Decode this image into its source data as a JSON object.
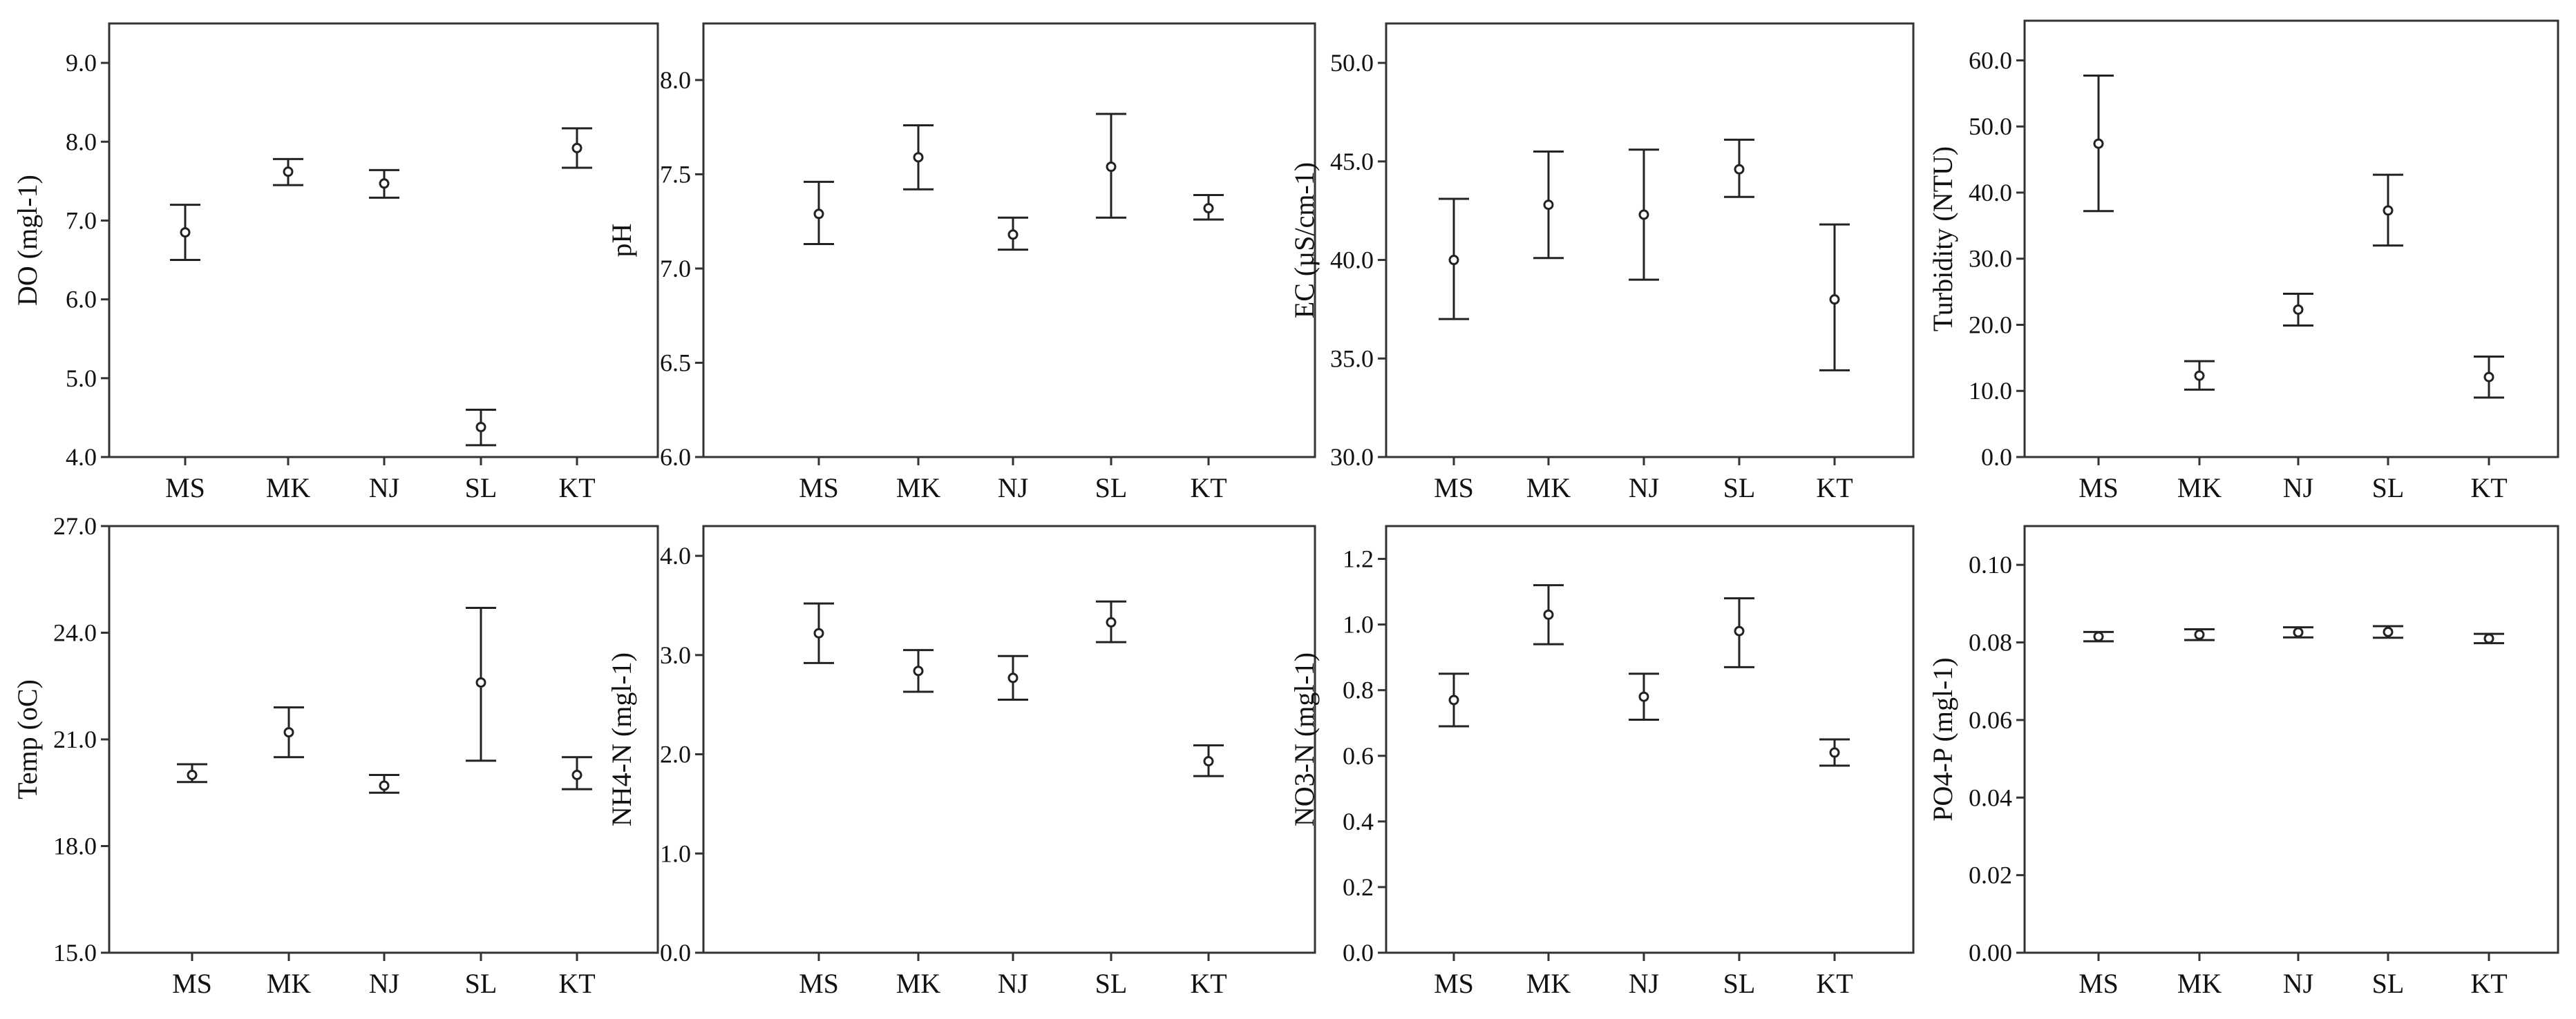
{
  "chart_data": [
    {
      "type": "errorbar",
      "ylabel": "DO (mgl-1)",
      "categories": [
        "MS",
        "MK",
        "NJ",
        "SL",
        "KT"
      ],
      "ylim": [
        4.0,
        9.5
      ],
      "yticks": [
        "4.0",
        "5.0",
        "6.0",
        "7.0",
        "8.0",
        "9.0"
      ],
      "series": [
        {
          "mean": [
            6.85,
            7.62,
            7.47,
            4.38,
            7.92
          ],
          "lower": [
            6.5,
            7.45,
            7.29,
            4.15,
            7.67
          ],
          "upper": [
            7.2,
            7.78,
            7.64,
            4.6,
            8.17
          ]
        }
      ]
    },
    {
      "type": "errorbar",
      "ylabel": "pH",
      "categories": [
        "MS",
        "MK",
        "NJ",
        "SL",
        "KT"
      ],
      "ylim": [
        6.0,
        8.3
      ],
      "yticks": [
        "6.0",
        "6.5",
        "7.0",
        "7.5",
        "8.0"
      ],
      "series": [
        {
          "mean": [
            7.29,
            7.59,
            7.18,
            7.54,
            7.32
          ],
          "lower": [
            7.13,
            7.42,
            7.1,
            7.27,
            7.26
          ],
          "upper": [
            7.46,
            7.76,
            7.27,
            7.82,
            7.39
          ]
        }
      ]
    },
    {
      "type": "errorbar",
      "ylabel": "EC (µS/cm-1)",
      "categories": [
        "MS",
        "MK",
        "NJ",
        "SL",
        "KT"
      ],
      "ylim": [
        30.0,
        52.0
      ],
      "yticks": [
        "30.0",
        "35.0",
        "40.0",
        "45.0",
        "50.0"
      ],
      "series": [
        {
          "mean": [
            40.0,
            42.8,
            42.3,
            44.6,
            38.0
          ],
          "lower": [
            37.0,
            40.1,
            39.0,
            43.2,
            34.4
          ],
          "upper": [
            43.1,
            45.5,
            45.6,
            46.1,
            41.8
          ]
        }
      ]
    },
    {
      "type": "errorbar",
      "ylabel": "Turbidity (NTU)",
      "categories": [
        "MS",
        "MK",
        "NJ",
        "SL",
        "KT"
      ],
      "ylim": [
        0.0,
        66.0
      ],
      "yticks": [
        "0.0",
        "10.0",
        "20.0",
        "30.0",
        "40.0",
        "50.0",
        "60.0"
      ],
      "series": [
        {
          "mean": [
            47.4,
            12.3,
            22.3,
            37.3,
            12.1
          ],
          "lower": [
            37.2,
            10.2,
            19.9,
            32.0,
            9.0
          ],
          "upper": [
            57.7,
            14.5,
            24.7,
            42.7,
            15.2
          ]
        }
      ]
    },
    {
      "type": "errorbar",
      "ylabel": "Temp (oC)",
      "categories": [
        "MS",
        "MK",
        "NJ",
        "SL",
        "KT"
      ],
      "ylim": [
        15.0,
        27.0
      ],
      "yticks": [
        "15.0",
        "18.0",
        "21.0",
        "24.0",
        "27.0"
      ],
      "series": [
        {
          "mean": [
            20.0,
            21.2,
            19.7,
            22.6,
            20.0
          ],
          "lower": [
            19.8,
            20.5,
            19.5,
            20.4,
            19.6
          ],
          "upper": [
            20.3,
            21.9,
            20.0,
            24.7,
            20.5
          ]
        }
      ]
    },
    {
      "type": "errorbar",
      "ylabel": "NH4-N (mgl-1)",
      "categories": [
        "MS",
        "MK",
        "NJ",
        "SL",
        "KT"
      ],
      "ylim": [
        0.0,
        4.3
      ],
      "yticks": [
        "0.0",
        "1.0",
        "2.0",
        "3.0",
        "4.0"
      ],
      "series": [
        {
          "mean": [
            3.22,
            2.84,
            2.77,
            3.33,
            1.93
          ],
          "lower": [
            2.92,
            2.63,
            2.55,
            3.13,
            1.78
          ],
          "upper": [
            3.52,
            3.05,
            2.99,
            3.54,
            2.09
          ]
        }
      ]
    },
    {
      "type": "errorbar",
      "ylabel": "NO3-N (mgl-1)",
      "categories": [
        "MS",
        "MK",
        "NJ",
        "SL",
        "KT"
      ],
      "ylim": [
        0.0,
        1.3
      ],
      "yticks": [
        "0.0",
        "0.2",
        "0.4",
        "0.6",
        "0.8",
        "1.0",
        "1.2"
      ],
      "series": [
        {
          "mean": [
            0.77,
            1.03,
            0.78,
            0.98,
            0.61
          ],
          "lower": [
            0.69,
            0.94,
            0.71,
            0.87,
            0.57
          ],
          "upper": [
            0.85,
            1.12,
            0.85,
            1.08,
            0.65
          ]
        }
      ]
    },
    {
      "type": "errorbar",
      "ylabel": "PO4-P (mgl-1)",
      "categories": [
        "MS",
        "MK",
        "NJ",
        "SL",
        "KT"
      ],
      "ylim": [
        0.0,
        0.11
      ],
      "yticks": [
        "0.00",
        "0.02",
        "0.04",
        "0.06",
        "0.08",
        "0.10"
      ],
      "series": [
        {
          "mean": [
            0.0815,
            0.082,
            0.0826,
            0.0827,
            0.081
          ],
          "lower": [
            0.0803,
            0.0806,
            0.0813,
            0.0812,
            0.0798
          ],
          "upper": [
            0.0827,
            0.0834,
            0.0839,
            0.0842,
            0.0822
          ]
        }
      ]
    }
  ]
}
